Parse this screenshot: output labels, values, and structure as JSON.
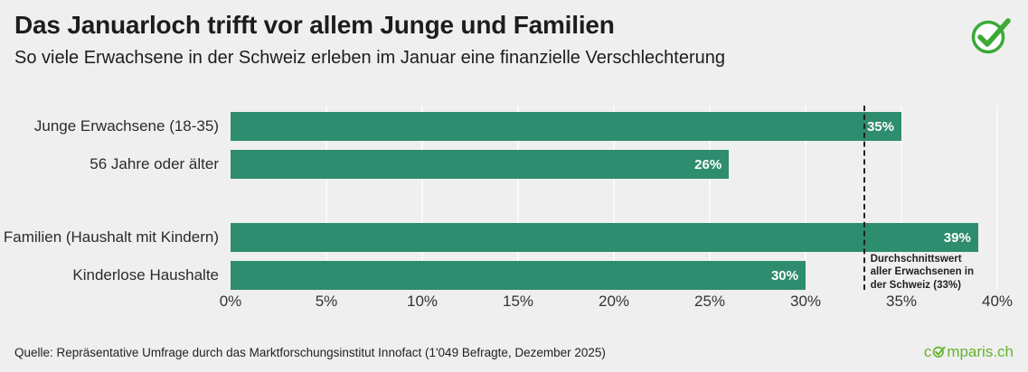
{
  "header": {
    "title": "Das Januarloch trifft vor allem Junge und Familien",
    "subtitle": "So viele Erwachsene in der Schweiz erleben im Januar eine finanzielle Verschlechterung"
  },
  "chart_data": {
    "type": "bar",
    "orientation": "horizontal",
    "title": "Das Januarloch trifft vor allem Junge und Familien",
    "subtitle": "So viele Erwachsene in der Schweiz erleben im Januar eine finanzielle Verschlechterung",
    "categories": [
      "Junge Erwachsene (18-35)",
      "56 Jahre oder älter",
      "Familien (Haushalt mit Kindern)",
      "Kinderlose Haushalte"
    ],
    "values": [
      35,
      26,
      39,
      30
    ],
    "value_labels": [
      "35%",
      "26%",
      "39%",
      "30%"
    ],
    "group_gap_before_index": 2,
    "xlim": [
      0,
      40
    ],
    "ticks": [
      0,
      5,
      10,
      15,
      20,
      25,
      30,
      35,
      40
    ],
    "tick_labels": [
      "0%",
      "5%",
      "10%",
      "15%",
      "20%",
      "25%",
      "30%",
      "35%",
      "40%"
    ],
    "average_value": 33,
    "average_annotation": "Durchschnittswert aller Erwachsenen in der Schweiz (33%)",
    "bar_color": "#2e8c6f",
    "background_color": "#efefef",
    "grid": true,
    "legend": false
  },
  "footer": {
    "source": "Quelle: Repräsentative Umfrage durch das Marktforschungsinstitut Innofact (1'049 Befragte, Dezember 2025)",
    "brand": {
      "prefix": "c",
      "suffix": "mparis.ch"
    }
  },
  "logo": {
    "name": "comparis-check",
    "color": "#3aaa35"
  }
}
